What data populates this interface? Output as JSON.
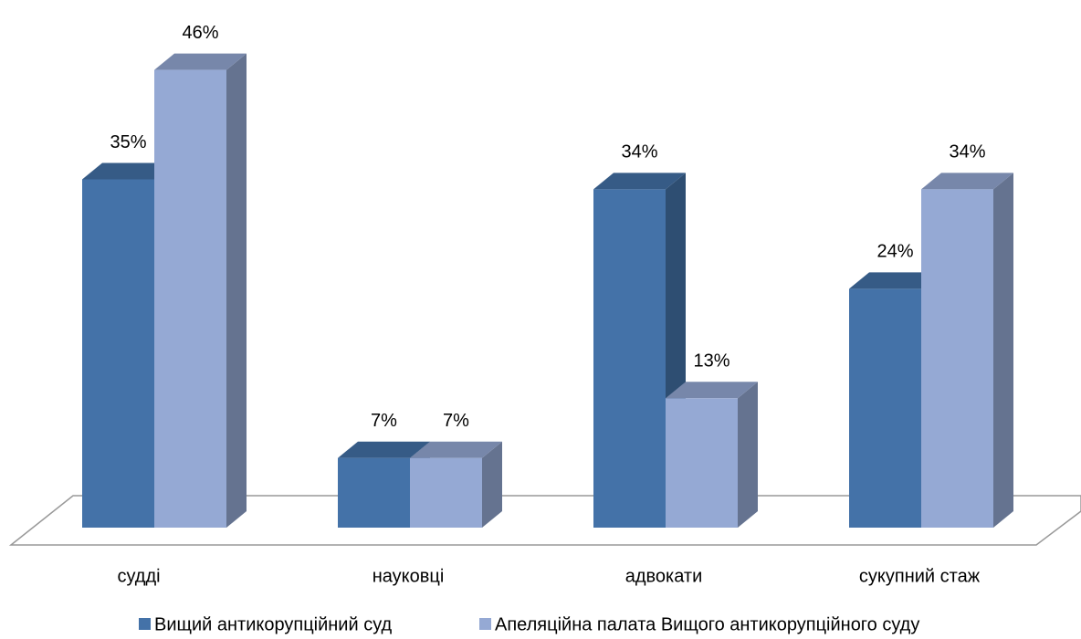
{
  "chart_data": {
    "type": "bar3d",
    "categories": [
      "судді",
      "науковці",
      "адвокати",
      "сукупний стаж"
    ],
    "series": [
      {
        "name": "Вищий антикорупційний суд",
        "color": "#4472a8",
        "values": [
          35,
          7,
          34,
          24
        ],
        "value_labels": [
          "35%",
          "7%",
          "34%",
          "24%"
        ]
      },
      {
        "name": "Апеляційна палата Вищого антикорупційного суду",
        "color": "#95a9d4",
        "values": [
          46,
          7,
          13,
          34
        ],
        "value_labels": [
          "46%",
          "7%",
          "13%",
          "34%"
        ]
      }
    ],
    "legend": "bottom"
  }
}
